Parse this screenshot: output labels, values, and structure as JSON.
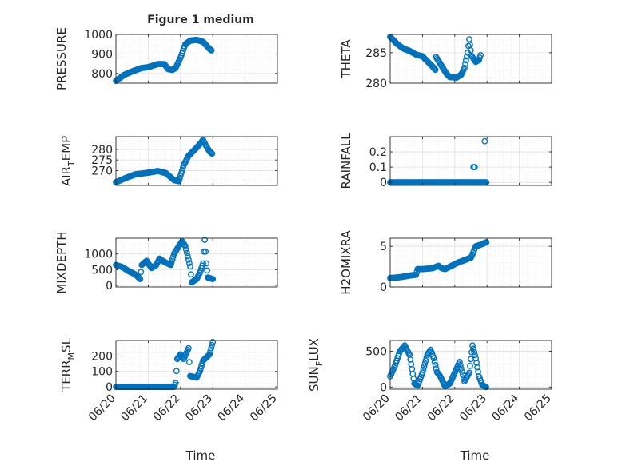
{
  "figure": {
    "title": "Figure 1 medium",
    "time_label": "Time",
    "date_ticks": [
      "06/20",
      "06/21",
      "06/22",
      "06/23",
      "06/24",
      "06/25"
    ]
  },
  "colors": {
    "marker": "#0072BD",
    "axis": "#262626",
    "grid": "#dfdfdf",
    "minor_grid": "#e4e4e4"
  },
  "chart_data": [
    {
      "type": "scatter",
      "id": "pressure",
      "ylabel": "PRESSURE",
      "xlim": [
        "2016-06-20",
        "2016-06-25"
      ],
      "ylim": [
        750,
        1000
      ],
      "yticks": [
        800,
        900,
        1000
      ],
      "yticklabels": [
        "800",
        "900",
        "1000"
      ],
      "show_xticklabels": false,
      "series": [
        {
          "keyframes": [
            [
              0,
              762
            ],
            [
              0.25,
              792
            ],
            [
              0.5,
              810
            ],
            [
              0.8,
              828
            ],
            [
              1.0,
              832
            ],
            [
              1.3,
              848
            ],
            [
              1.5,
              848
            ],
            [
              1.62,
              822
            ],
            [
              1.75,
              818
            ],
            [
              1.85,
              828
            ],
            [
              2.0,
              880
            ],
            [
              2.15,
              950
            ],
            [
              2.3,
              968
            ],
            [
              2.5,
              972
            ],
            [
              2.7,
              962
            ],
            [
              2.9,
              926
            ],
            [
              2.96,
              918
            ]
          ]
        }
      ]
    },
    {
      "type": "scatter",
      "id": "theta",
      "ylabel": "THETA",
      "xlim": [
        "2016-06-20",
        "2016-06-25"
      ],
      "ylim": [
        280,
        288
      ],
      "yticks": [
        280,
        285
      ],
      "yticklabels": [
        "280",
        "285"
      ],
      "show_xticklabels": false,
      "series": [
        {
          "keyframes": [
            [
              0,
              287.6
            ],
            [
              0.2,
              286.5
            ],
            [
              0.4,
              285.7
            ],
            [
              0.6,
              285.3
            ],
            [
              0.8,
              284.7
            ],
            [
              1.0,
              284.4
            ],
            [
              1.15,
              283.6
            ],
            [
              1.3,
              282.8
            ],
            [
              1.4,
              282.2
            ],
            [
              1.42,
              284.3
            ],
            [
              1.55,
              283.2
            ],
            [
              1.75,
              281.5
            ],
            [
              1.85,
              281.0
            ],
            [
              2.05,
              280.9
            ],
            [
              2.2,
              281.4
            ],
            [
              2.3,
              282.5
            ],
            [
              2.4,
              285.0
            ],
            [
              2.45,
              287.2
            ],
            [
              2.52,
              284.5
            ],
            [
              2.65,
              283.5
            ],
            [
              2.75,
              283.8
            ],
            [
              2.8,
              284.6
            ]
          ]
        }
      ]
    },
    {
      "type": "scatter",
      "id": "air_temp",
      "ylabel": "AIR_TEMP",
      "ylabel_main": "AIR",
      "ylabel_sub": "T",
      "ylabel_rest": "EMP",
      "xlim": [
        "2016-06-20",
        "2016-06-25"
      ],
      "ylim": [
        263,
        286
      ],
      "yticks": [
        270,
        275,
        280
      ],
      "yticklabels": [
        "270",
        "275",
        "280"
      ],
      "show_xticklabels": false,
      "series": [
        {
          "keyframes": [
            [
              0,
              264.5
            ],
            [
              0.3,
              266.5
            ],
            [
              0.6,
              268.2
            ],
            [
              1.0,
              269.0
            ],
            [
              1.3,
              269.8
            ],
            [
              1.55,
              268.8
            ],
            [
              1.8,
              265.5
            ],
            [
              1.95,
              265.0
            ],
            [
              2.1,
              272.5
            ],
            [
              2.25,
              277.0
            ],
            [
              2.35,
              278.5
            ],
            [
              2.45,
              280.0
            ],
            [
              2.6,
              282.5
            ],
            [
              2.7,
              284.5
            ],
            [
              2.78,
              282.0
            ],
            [
              2.9,
              279.0
            ],
            [
              2.98,
              278.0
            ]
          ]
        }
      ]
    },
    {
      "type": "scatter",
      "id": "rainfall",
      "ylabel": "RAINFALL",
      "xlim": [
        "2016-06-20",
        "2016-06-25"
      ],
      "ylim": [
        -0.02,
        0.3
      ],
      "yticks": [
        0,
        0.1,
        0.2
      ],
      "yticklabels": [
        "0",
        "0.1",
        "0.2"
      ],
      "show_xticklabels": false,
      "series": [
        {
          "keyframes": [
            [
              0,
              0
            ],
            [
              2.98,
              0
            ]
          ],
          "extra": [
            [
              2.58,
              0.1
            ],
            [
              2.6,
              0.1
            ],
            [
              2.62,
              0.1
            ],
            [
              2.93,
              0.27
            ]
          ]
        }
      ]
    },
    {
      "type": "scatter",
      "id": "mixdepth",
      "ylabel": "MIXDEPTH",
      "xlim": [
        "2016-06-20",
        "2016-06-25"
      ],
      "ylim": [
        -50,
        1500
      ],
      "yticks": [
        0,
        500,
        1000
      ],
      "yticklabels": [
        "0",
        "500",
        "1000"
      ],
      "show_xticklabels": false,
      "series": [
        {
          "keyframes": [
            [
              0,
              650
            ],
            [
              0.2,
              580
            ],
            [
              0.4,
              450
            ],
            [
              0.6,
              350
            ],
            [
              0.75,
              200
            ],
            [
              0.8,
              650
            ],
            [
              0.95,
              780
            ],
            [
              1.1,
              550
            ],
            [
              1.25,
              650
            ],
            [
              1.35,
              850
            ],
            [
              1.45,
              780
            ],
            [
              1.55,
              720
            ],
            [
              1.7,
              650
            ],
            [
              1.8,
              1000
            ],
            [
              1.95,
              1250
            ],
            [
              2.05,
              1400
            ],
            [
              2.15,
              1250
            ],
            [
              2.3,
              600
            ],
            [
              2.35,
              100
            ],
            [
              2.5,
              200
            ],
            [
              2.6,
              400
            ],
            [
              2.7,
              700
            ],
            [
              2.75,
              1450
            ],
            [
              2.8,
              700
            ],
            [
              2.85,
              250
            ],
            [
              3.0,
              200
            ]
          ]
        }
      ]
    },
    {
      "type": "scatter",
      "id": "h2omixra",
      "ylabel": "H2OMIXRA",
      "xlim": [
        "2016-06-20",
        "2016-06-25"
      ],
      "ylim": [
        0,
        6
      ],
      "yticks": [
        0,
        5
      ],
      "yticklabels": [
        "0",
        "5"
      ],
      "show_xticklabels": false,
      "series": [
        {
          "keyframes": [
            [
              0,
              1.1
            ],
            [
              0.3,
              1.2
            ],
            [
              0.6,
              1.4
            ],
            [
              0.8,
              1.5
            ],
            [
              0.85,
              2.2
            ],
            [
              1.0,
              2.2
            ],
            [
              1.3,
              2.3
            ],
            [
              1.5,
              2.6
            ],
            [
              1.6,
              2.3
            ],
            [
              1.7,
              2.2
            ],
            [
              1.9,
              2.6
            ],
            [
              2.1,
              3.0
            ],
            [
              2.3,
              3.3
            ],
            [
              2.5,
              3.6
            ],
            [
              2.55,
              4.0
            ],
            [
              2.65,
              5.0
            ],
            [
              2.8,
              5.2
            ],
            [
              2.98,
              5.5
            ]
          ]
        }
      ]
    },
    {
      "type": "scatter",
      "id": "terr_msl",
      "ylabel": "TERR_MSL",
      "ylabel_main": "TERR",
      "ylabel_sub": "M",
      "ylabel_rest": "SL",
      "xlim": [
        "2016-06-20",
        "2016-06-25"
      ],
      "ylim": [
        -15,
        300
      ],
      "yticks": [
        0,
        100,
        200
      ],
      "yticklabels": [
        "0",
        "100",
        "200"
      ],
      "show_xticklabels": true,
      "series": [
        {
          "keyframes": [
            [
              0,
              0
            ],
            [
              1.8,
              0
            ],
            [
              1.85,
              25
            ],
            [
              1.9,
              180
            ],
            [
              2.0,
              210
            ],
            [
              2.1,
              180
            ],
            [
              2.25,
              250
            ],
            [
              2.3,
              70
            ],
            [
              2.5,
              60
            ],
            [
              2.6,
              100
            ],
            [
              2.7,
              170
            ],
            [
              2.9,
              210
            ],
            [
              3.0,
              290
            ]
          ]
        }
      ]
    },
    {
      "type": "scatter",
      "id": "sun_flux",
      "ylabel": "SUN_FLUX",
      "ylabel_main": "SUN",
      "ylabel_sub": "F",
      "ylabel_rest": "LUX",
      "xlim": [
        "2016-06-20",
        "2016-06-25"
      ],
      "ylim": [
        -30,
        650
      ],
      "yticks": [
        0,
        500
      ],
      "yticklabels": [
        "0",
        "500"
      ],
      "show_xticklabels": true,
      "series": [
        {
          "keyframes": [
            [
              0,
              150
            ],
            [
              0.15,
              300
            ],
            [
              0.3,
              500
            ],
            [
              0.45,
              580
            ],
            [
              0.6,
              450
            ],
            [
              0.75,
              50
            ],
            [
              0.85,
              20
            ],
            [
              1.0,
              200
            ],
            [
              1.15,
              450
            ],
            [
              1.25,
              520
            ],
            [
              1.35,
              400
            ],
            [
              1.45,
              210
            ],
            [
              1.55,
              150
            ],
            [
              1.7,
              10
            ],
            [
              1.85,
              50
            ],
            [
              2.0,
              200
            ],
            [
              2.15,
              350
            ],
            [
              2.3,
              80
            ],
            [
              2.45,
              200
            ],
            [
              2.55,
              580
            ],
            [
              2.65,
              400
            ],
            [
              2.75,
              150
            ],
            [
              2.85,
              30
            ],
            [
              2.97,
              0
            ]
          ]
        }
      ]
    }
  ]
}
